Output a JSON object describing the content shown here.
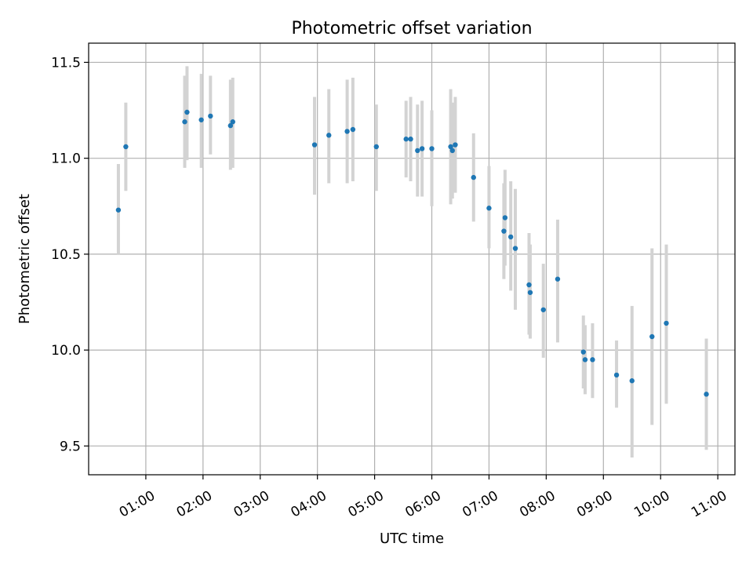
{
  "chart_data": {
    "type": "scatter",
    "title": "Photometric offset variation",
    "xlabel": "UTC time",
    "ylabel": "Photometric offset",
    "x_unit": "hours UTC",
    "xlim": [
      0.0,
      11.3
    ],
    "ylim": [
      9.35,
      11.6
    ],
    "grid": true,
    "x_ticks": [
      {
        "value": 1,
        "label": "01:00"
      },
      {
        "value": 2,
        "label": "02:00"
      },
      {
        "value": 3,
        "label": "03:00"
      },
      {
        "value": 4,
        "label": "04:00"
      },
      {
        "value": 5,
        "label": "05:00"
      },
      {
        "value": 6,
        "label": "06:00"
      },
      {
        "value": 7,
        "label": "07:00"
      },
      {
        "value": 8,
        "label": "08:00"
      },
      {
        "value": 9,
        "label": "09:00"
      },
      {
        "value": 10,
        "label": "10:00"
      },
      {
        "value": 11,
        "label": "11:00"
      }
    ],
    "y_ticks": [
      {
        "value": 9.5,
        "label": "9.5"
      },
      {
        "value": 10.0,
        "label": "10.0"
      },
      {
        "value": 10.5,
        "label": "10.5"
      },
      {
        "value": 11.0,
        "label": "11.0"
      },
      {
        "value": 11.5,
        "label": "11.5"
      }
    ],
    "marker_color": "#1f77b4",
    "errorbar_color": "#d3d3d3",
    "points": [
      {
        "x": 0.52,
        "y": 10.73,
        "low": 10.5,
        "high": 10.97
      },
      {
        "x": 0.65,
        "y": 11.06,
        "low": 10.83,
        "high": 11.29
      },
      {
        "x": 1.68,
        "y": 11.19,
        "low": 10.95,
        "high": 11.43
      },
      {
        "x": 1.72,
        "y": 11.24,
        "low": 10.99,
        "high": 11.48
      },
      {
        "x": 1.97,
        "y": 11.2,
        "low": 10.95,
        "high": 11.44
      },
      {
        "x": 2.13,
        "y": 11.22,
        "low": 11.02,
        "high": 11.43
      },
      {
        "x": 2.48,
        "y": 11.17,
        "low": 10.94,
        "high": 11.41
      },
      {
        "x": 2.52,
        "y": 11.19,
        "low": 10.95,
        "high": 11.42
      },
      {
        "x": 3.95,
        "y": 11.07,
        "low": 10.81,
        "high": 11.32
      },
      {
        "x": 4.2,
        "y": 11.12,
        "low": 10.87,
        "high": 11.36
      },
      {
        "x": 4.52,
        "y": 11.14,
        "low": 10.87,
        "high": 11.41
      },
      {
        "x": 4.62,
        "y": 11.15,
        "low": 10.88,
        "high": 11.42
      },
      {
        "x": 5.03,
        "y": 11.06,
        "low": 10.83,
        "high": 11.28
      },
      {
        "x": 5.55,
        "y": 11.1,
        "low": 10.9,
        "high": 11.3
      },
      {
        "x": 5.63,
        "y": 11.1,
        "low": 10.88,
        "high": 11.32
      },
      {
        "x": 5.75,
        "y": 11.04,
        "low": 10.8,
        "high": 11.28
      },
      {
        "x": 5.83,
        "y": 11.05,
        "low": 10.8,
        "high": 11.3
      },
      {
        "x": 6.0,
        "y": 11.05,
        "low": 10.75,
        "high": 11.25
      },
      {
        "x": 6.33,
        "y": 11.06,
        "low": 10.76,
        "high": 11.36
      },
      {
        "x": 6.36,
        "y": 11.04,
        "low": 10.79,
        "high": 11.29
      },
      {
        "x": 6.41,
        "y": 11.07,
        "low": 10.82,
        "high": 11.32
      },
      {
        "x": 6.73,
        "y": 10.9,
        "low": 10.67,
        "high": 11.13
      },
      {
        "x": 7.0,
        "y": 10.74,
        "low": 10.53,
        "high": 10.96
      },
      {
        "x": 7.26,
        "y": 10.62,
        "low": 10.37,
        "high": 10.87
      },
      {
        "x": 7.28,
        "y": 10.69,
        "low": 10.44,
        "high": 10.94
      },
      {
        "x": 7.38,
        "y": 10.59,
        "low": 10.31,
        "high": 10.88
      },
      {
        "x": 7.46,
        "y": 10.53,
        "low": 10.21,
        "high": 10.84
      },
      {
        "x": 7.7,
        "y": 10.34,
        "low": 10.08,
        "high": 10.61
      },
      {
        "x": 7.72,
        "y": 10.3,
        "low": 10.06,
        "high": 10.55
      },
      {
        "x": 7.95,
        "y": 10.21,
        "low": 9.96,
        "high": 10.45
      },
      {
        "x": 8.2,
        "y": 10.37,
        "low": 10.04,
        "high": 10.68
      },
      {
        "x": 8.65,
        "y": 9.99,
        "low": 9.8,
        "high": 10.18
      },
      {
        "x": 8.68,
        "y": 9.95,
        "low": 9.77,
        "high": 10.13
      },
      {
        "x": 8.81,
        "y": 9.95,
        "low": 9.75,
        "high": 10.14
      },
      {
        "x": 9.23,
        "y": 9.87,
        "low": 9.7,
        "high": 10.05
      },
      {
        "x": 9.5,
        "y": 9.84,
        "low": 9.44,
        "high": 10.23
      },
      {
        "x": 9.85,
        "y": 10.07,
        "low": 9.61,
        "high": 10.53
      },
      {
        "x": 10.1,
        "y": 10.14,
        "low": 9.72,
        "high": 10.55
      },
      {
        "x": 10.8,
        "y": 9.77,
        "low": 9.48,
        "high": 10.06
      }
    ]
  }
}
